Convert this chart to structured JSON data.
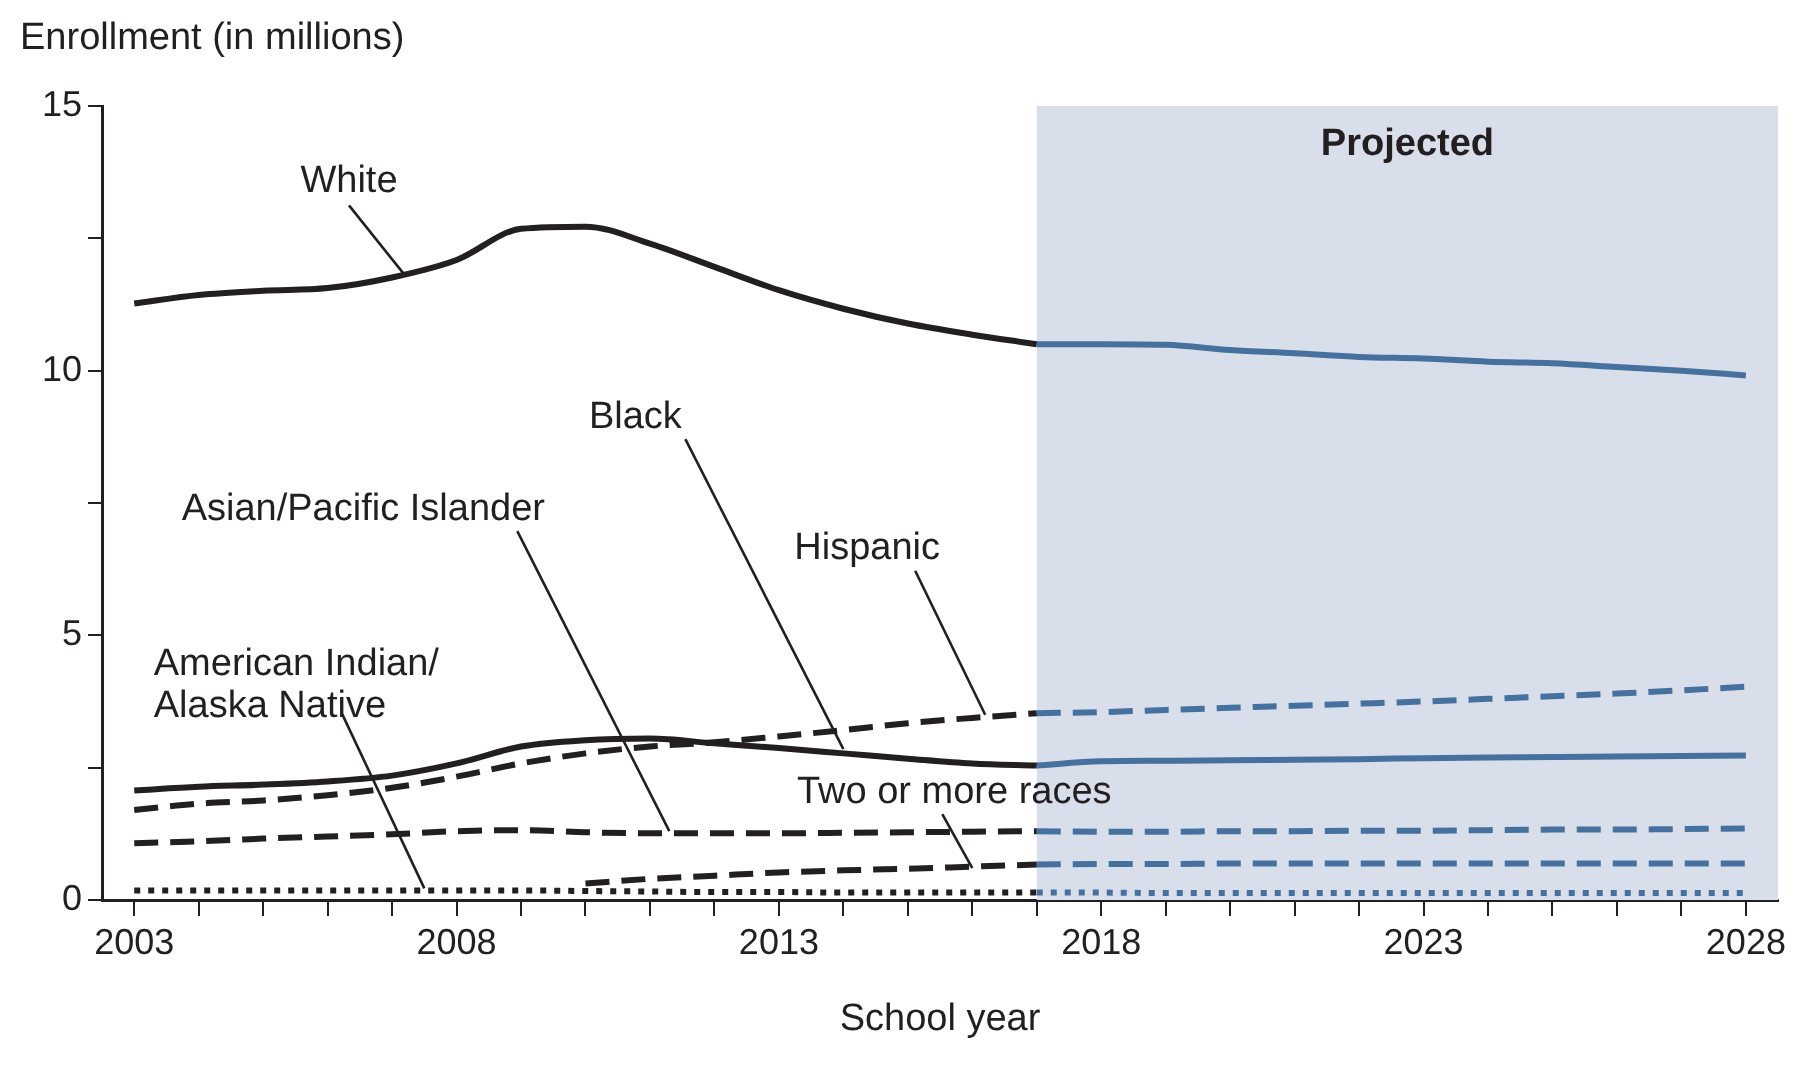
{
  "chart_data": {
    "type": "line",
    "ylabel": "Enrollment (in millions)",
    "xlabel": "School year",
    "xlim": [
      2002.5,
      2028.5
    ],
    "xticks": [
      2003,
      {
        "value": 2004,
        "label": null
      },
      {
        "value": 2005,
        "label": null
      },
      {
        "value": 2006,
        "label": null
      },
      {
        "value": 2007,
        "label": null
      },
      2008,
      {
        "value": 2009,
        "label": null
      },
      {
        "value": 2010,
        "label": null
      },
      {
        "value": 2011,
        "label": null
      },
      {
        "value": 2012,
        "label": null
      },
      2013,
      {
        "value": 2014,
        "label": null
      },
      {
        "value": 2015,
        "label": null
      },
      {
        "value": 2016,
        "label": null
      },
      {
        "value": 2017,
        "label": null
      },
      2018,
      {
        "value": 2019,
        "label": null
      },
      {
        "value": 2020,
        "label": null
      },
      {
        "value": 2021,
        "label": null
      },
      {
        "value": 2022,
        "label": null
      },
      2023,
      {
        "value": 2024,
        "label": null
      },
      {
        "value": 2025,
        "label": null
      },
      {
        "value": 2026,
        "label": null
      },
      {
        "value": 2027,
        "label": null
      },
      2028
    ],
    "ylim": [
      0,
      15
    ],
    "yticks": [
      0,
      {
        "value": 2.5,
        "label": null
      },
      5,
      {
        "value": 7.5,
        "label": null
      },
      10,
      {
        "value": 12.5,
        "label": null
      },
      15
    ],
    "grid": false,
    "legend": false,
    "marker": "none",
    "series": [
      {
        "name": "White",
        "color": "#231f20",
        "line_style": "solid",
        "x": [
          2003,
          2004,
          2005,
          2006,
          2007,
          2008,
          2009,
          2010,
          2011,
          2012,
          2013,
          2014,
          2015,
          2016,
          2017
        ],
        "values": [
          11.27,
          11.43,
          11.51,
          11.56,
          11.76,
          12.09,
          12.68,
          12.72,
          12.4,
          11.96,
          11.52,
          11.17,
          10.89,
          10.68,
          10.5
        ]
      },
      {
        "color": "#46709e",
        "line_style": "solid",
        "x": [
          2017,
          2018,
          2019,
          2020,
          2021,
          2022,
          2023,
          2024,
          2025,
          2026,
          2027,
          2028
        ],
        "values": [
          10.5,
          10.5,
          10.49,
          10.39,
          10.33,
          10.26,
          10.23,
          10.17,
          10.14,
          10.07,
          10.0,
          9.91
        ]
      },
      {
        "name": "Black",
        "color": "#231f20",
        "line_style": "solid",
        "x": [
          2003,
          2004,
          2005,
          2006,
          2007,
          2008,
          2009,
          2010,
          2011,
          2012,
          2013,
          2014,
          2015,
          2016,
          2017
        ],
        "values": [
          2.07,
          2.14,
          2.18,
          2.24,
          2.35,
          2.58,
          2.9,
          3.02,
          3.05,
          2.96,
          2.87,
          2.77,
          2.67,
          2.58,
          2.54
        ]
      },
      {
        "color": "#46709e",
        "line_style": "solid",
        "x": [
          2017,
          2018,
          2019,
          2020,
          2021,
          2022,
          2023,
          2024,
          2025,
          2026,
          2027,
          2028
        ],
        "values": [
          2.54,
          2.62,
          2.63,
          2.64,
          2.65,
          2.66,
          2.68,
          2.69,
          2.7,
          2.71,
          2.72,
          2.73
        ]
      },
      {
        "name": "Hispanic",
        "color": "#231f20",
        "line_style": "dashed",
        "x": [
          2003,
          2004,
          2005,
          2006,
          2007,
          2008,
          2009,
          2010,
          2011,
          2012,
          2013,
          2014,
          2015,
          2016,
          2017
        ],
        "values": [
          1.7,
          1.82,
          1.88,
          1.98,
          2.12,
          2.33,
          2.58,
          2.77,
          2.9,
          2.98,
          3.09,
          3.21,
          3.34,
          3.44,
          3.53
        ]
      },
      {
        "color": "#46709e",
        "line_style": "dashed",
        "x": [
          2017,
          2018,
          2019,
          2020,
          2021,
          2022,
          2023,
          2024,
          2025,
          2026,
          2027,
          2028
        ],
        "values": [
          3.53,
          3.55,
          3.59,
          3.63,
          3.67,
          3.71,
          3.75,
          3.8,
          3.85,
          3.9,
          3.96,
          4.03
        ]
      },
      {
        "name": "Asian/Pacific Islander",
        "color": "#231f20",
        "line_style": "dashed",
        "x": [
          2003,
          2004,
          2005,
          2006,
          2007,
          2008,
          2009,
          2010,
          2011,
          2012,
          2013,
          2014,
          2015,
          2016,
          2017
        ],
        "values": [
          1.07,
          1.11,
          1.16,
          1.2,
          1.24,
          1.3,
          1.32,
          1.28,
          1.26,
          1.26,
          1.26,
          1.27,
          1.28,
          1.29,
          1.3
        ]
      },
      {
        "color": "#46709e",
        "line_style": "dashed",
        "x": [
          2017,
          2018,
          2019,
          2020,
          2021,
          2022,
          2023,
          2024,
          2025,
          2026,
          2027,
          2028
        ],
        "values": [
          1.3,
          1.29,
          1.29,
          1.3,
          1.3,
          1.31,
          1.31,
          1.32,
          1.33,
          1.33,
          1.34,
          1.35
        ]
      },
      {
        "name": "Two or more races",
        "color": "#231f20",
        "line_style": "dashed",
        "x": [
          2010,
          2011,
          2012,
          2013,
          2014,
          2015,
          2016,
          2017
        ],
        "values": [
          0.31,
          0.4,
          0.46,
          0.52,
          0.56,
          0.59,
          0.63,
          0.67
        ]
      },
      {
        "color": "#46709e",
        "line_style": "dashed",
        "x": [
          2017,
          2018,
          2019,
          2020,
          2021,
          2022,
          2023,
          2024,
          2025,
          2026,
          2027,
          2028
        ],
        "values": [
          0.67,
          0.68,
          0.68,
          0.69,
          0.69,
          0.69,
          0.69,
          0.69,
          0.69,
          0.69,
          0.69,
          0.69
        ]
      },
      {
        "name": "American Indian/\nAlaska Native",
        "color": "#231f20",
        "line_style": "dotted",
        "x": [
          2003,
          2004,
          2005,
          2006,
          2007,
          2008,
          2009,
          2010,
          2011,
          2012,
          2013,
          2014,
          2015,
          2016,
          2017
        ],
        "values": [
          0.18,
          0.18,
          0.18,
          0.18,
          0.18,
          0.18,
          0.18,
          0.17,
          0.16,
          0.15,
          0.15,
          0.14,
          0.14,
          0.14,
          0.14
        ]
      },
      {
        "color": "#46709e",
        "line_style": "dotted",
        "x": [
          2017,
          2018,
          2019,
          2020,
          2021,
          2022,
          2023,
          2024,
          2025,
          2026,
          2027,
          2028
        ],
        "values": [
          0.14,
          0.14,
          0.13,
          0.13,
          0.13,
          0.13,
          0.13,
          0.13,
          0.13,
          0.13,
          0.13,
          0.13
        ]
      }
    ],
    "bands": [
      {
        "axis": "x",
        "from": 2017,
        "to": 2028.5,
        "label": "Projected",
        "color": "#d8deea"
      }
    ]
  }
}
